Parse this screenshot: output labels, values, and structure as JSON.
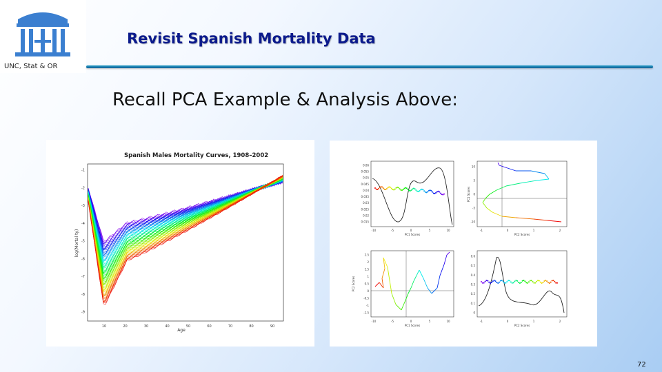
{
  "header": {
    "title": "Revisit Spanish Mortality Data",
    "org_caption": "UNC, Stat & OR",
    "logo_icon": "old-well-icon"
  },
  "body": {
    "subheading": "Recall PCA Example & Analysis Above:"
  },
  "figures": {
    "left": {
      "title": "Spanish Males Mortality Curves, 1908–2002",
      "xlabel": "Age",
      "ylabel": "log(Mortal ty)",
      "x_ticks": [
        "10",
        "20",
        "30",
        "40",
        "50",
        "60",
        "70",
        "80",
        "90"
      ],
      "y_ticks": [
        "-1",
        "-2",
        "-3",
        "-4",
        "-5",
        "-6",
        "-7",
        "-8",
        "-9"
      ]
    },
    "right": {
      "top_left": {
        "xlabel": "PC1 Scores",
        "x_ticks": [
          "-10",
          "-5",
          "0",
          "5",
          "10"
        ],
        "y_ticks": [
          "0.06",
          "0.055",
          "0.05",
          "0.045",
          "0.04",
          "0.035",
          "0.03",
          "0.025",
          "0.02",
          "0.015"
        ]
      },
      "top_right": {
        "xlabel": "PC2 Scores",
        "ylabel": "PC1 Scores",
        "x_ticks": [
          "-1",
          "0",
          "1",
          "2"
        ],
        "y_ticks": [
          "10",
          "5",
          "0",
          "-5",
          "-10"
        ]
      },
      "bottom_left": {
        "xlabel": "PC1 Scores",
        "ylabel": "PC2 Scores",
        "x_ticks": [
          "-10",
          "-5",
          "0",
          "5",
          "10"
        ],
        "y_ticks": [
          "2.5",
          "2",
          "1.5",
          "1",
          "0.5",
          "0",
          "-0.5",
          "-1",
          "-1.5"
        ]
      },
      "bottom_right": {
        "xlabel": "PC2 Scores",
        "x_ticks": [
          "-1",
          "0",
          "1",
          "2"
        ],
        "y_ticks": [
          "0.6",
          "0.5",
          "0.4",
          "0.3",
          "0.2",
          "0.1",
          "0"
        ]
      }
    }
  },
  "footer": {
    "page_number": "72"
  },
  "colors": {
    "title": "#0b1a8c",
    "rule": "#1a7fb4",
    "logo": "#3b7fd0"
  }
}
